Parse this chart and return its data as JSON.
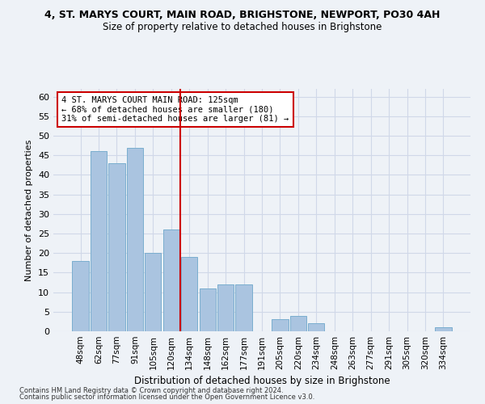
{
  "title": "4, ST. MARYS COURT, MAIN ROAD, BRIGHSTONE, NEWPORT, PO30 4AH",
  "subtitle": "Size of property relative to detached houses in Brighstone",
  "xlabel": "Distribution of detached houses by size in Brighstone",
  "ylabel": "Number of detached properties",
  "categories": [
    "48sqm",
    "62sqm",
    "77sqm",
    "91sqm",
    "105sqm",
    "120sqm",
    "134sqm",
    "148sqm",
    "162sqm",
    "177sqm",
    "191sqm",
    "205sqm",
    "220sqm",
    "234sqm",
    "248sqm",
    "263sqm",
    "277sqm",
    "291sqm",
    "305sqm",
    "320sqm",
    "334sqm"
  ],
  "values": [
    18,
    46,
    43,
    47,
    20,
    26,
    19,
    11,
    12,
    12,
    0,
    3,
    4,
    2,
    0,
    0,
    0,
    0,
    0,
    0,
    1
  ],
  "bar_color": "#aac4e0",
  "bar_edgecolor": "#7aaecf",
  "vline_x": 5.5,
  "vline_color": "#cc0000",
  "annotation_text": "4 ST. MARYS COURT MAIN ROAD: 125sqm\n← 68% of detached houses are smaller (180)\n31% of semi-detached houses are larger (81) →",
  "annotation_box_color": "#ffffff",
  "annotation_box_edgecolor": "#cc0000",
  "ylim": [
    0,
    62
  ],
  "yticks": [
    0,
    5,
    10,
    15,
    20,
    25,
    30,
    35,
    40,
    45,
    50,
    55,
    60
  ],
  "footnote1": "Contains HM Land Registry data © Crown copyright and database right 2024.",
  "footnote2": "Contains public sector information licensed under the Open Government Licence v3.0.",
  "bg_color": "#eef2f7",
  "grid_color": "#d0d8e8"
}
